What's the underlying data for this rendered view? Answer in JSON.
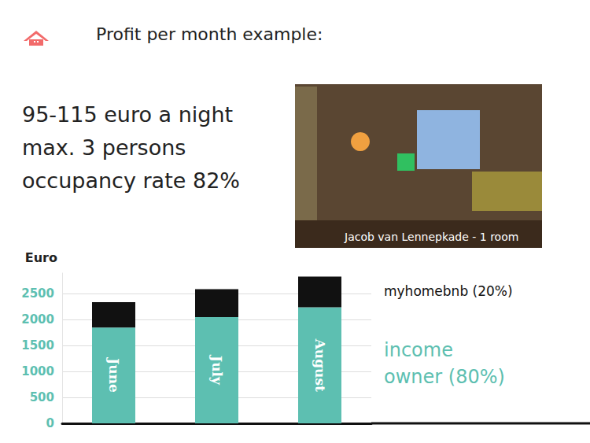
{
  "chart_data": {
    "type": "bar",
    "title": "Profit per month example:",
    "annotations": [
      "95-115 euro a night",
      "max. 3 persons",
      "occupancy rate 82%",
      "Jacob van Lennepkade - 1 room"
    ],
    "ylabel": "Euro",
    "categories": [
      "June",
      "July",
      "August"
    ],
    "series": [
      {
        "name": "income owner (80%)",
        "color": "#5dbfb1",
        "values": [
          1850,
          2050,
          2240
        ]
      },
      {
        "name": "myhomebnb (20%)",
        "color": "#111111",
        "values": [
          490,
          540,
          590
        ]
      }
    ],
    "ylim": [
      0,
      2900
    ],
    "yticks": [
      0,
      500,
      1000,
      1500,
      2000,
      2500
    ],
    "stacked": true,
    "grid": true,
    "tick_labels": "y"
  }
}
